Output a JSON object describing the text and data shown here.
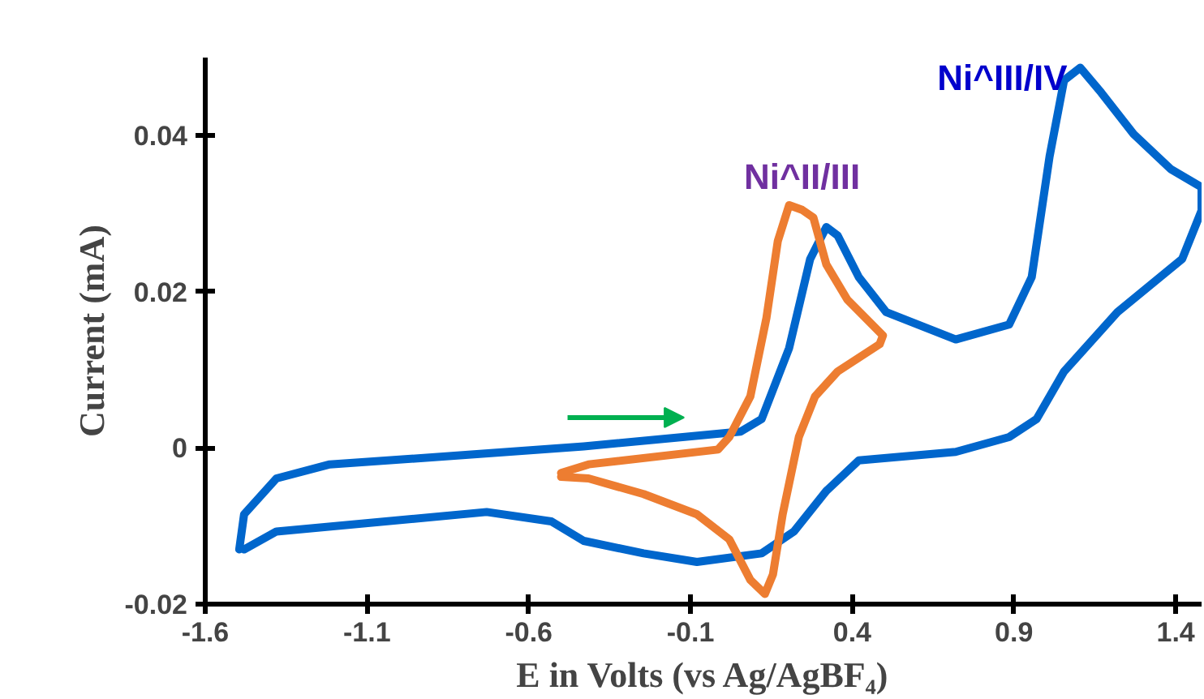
{
  "chart_data": {
    "type": "line",
    "xlabel": "E in Volts (vs Ag/AgBF₄)",
    "ylabel": "Current (mA)",
    "xlim": [
      -1.6,
      1.48
    ],
    "ylim": [
      -0.02,
      0.05
    ],
    "xticks": [
      -1.6,
      -1.1,
      -0.6,
      -0.1,
      0.4,
      0.9,
      1.4
    ],
    "yticks": [
      -0.02,
      0,
      0.02,
      0.04
    ],
    "grid": false,
    "marker": "none",
    "line_style": "solid",
    "series": [
      {
        "color": "#0066cc",
        "x": [
          -1.495,
          -1.48,
          -1.38,
          -1.215,
          -0.795,
          -0.43,
          0.055,
          0.12,
          0.205,
          0.27,
          0.32,
          0.355,
          0.42,
          0.505,
          0.72,
          0.885,
          0.955,
          1.01,
          1.055,
          1.105,
          1.17,
          1.27,
          1.385,
          1.48,
          1.48,
          1.42,
          1.22,
          1.055,
          0.97,
          0.885,
          0.72,
          0.42,
          0.32,
          0.22,
          0.12,
          -0.08,
          -0.245,
          -0.43,
          -0.53,
          -0.73,
          -1.38,
          -1.48
        ],
        "values": [
          -0.013,
          -0.0085,
          -0.0039,
          -0.0021,
          -0.0009,
          0.0002,
          0.0021,
          0.0037,
          0.0128,
          0.0242,
          0.0283,
          0.0272,
          0.0219,
          0.0174,
          0.0139,
          0.0158,
          0.0219,
          0.0373,
          0.0471,
          0.0487,
          0.0455,
          0.0402,
          0.0357,
          0.0334,
          0.0304,
          0.0242,
          0.0174,
          0.0098,
          0.0037,
          0.0014,
          -0.0005,
          -0.0016,
          -0.0055,
          -0.0107,
          -0.0135,
          -0.0146,
          -0.0135,
          -0.0119,
          -0.0094,
          -0.0082,
          -0.0107,
          -0.013
        ]
      },
      {
        "color": "#ed7d31",
        "x": [
          -0.5,
          -0.415,
          -0.015,
          0.02,
          0.085,
          0.135,
          0.17,
          0.205,
          0.245,
          0.28,
          0.32,
          0.385,
          0.495,
          0.485,
          0.355,
          0.285,
          0.235,
          0.185,
          0.155,
          0.13,
          0.085,
          0.02,
          -0.08,
          -0.245,
          -0.415,
          -0.5
        ],
        "values": [
          -0.0032,
          -0.0021,
          -0.0002,
          0.0014,
          0.0066,
          0.0167,
          0.0265,
          0.0311,
          0.0305,
          0.0295,
          0.0235,
          0.019,
          0.0144,
          0.0133,
          0.0098,
          0.0066,
          0.0014,
          -0.0085,
          -0.0162,
          -0.0187,
          -0.0169,
          -0.0117,
          -0.0085,
          -0.0059,
          -0.0039,
          -0.0037
        ]
      }
    ],
    "annotations": [
      {
        "text": "Ni^II/III",
        "x": 0.245,
        "y": 0.0311
      },
      {
        "text": "Ni^III/IV",
        "x": 1.105,
        "y": 0.0487
      }
    ]
  }
}
